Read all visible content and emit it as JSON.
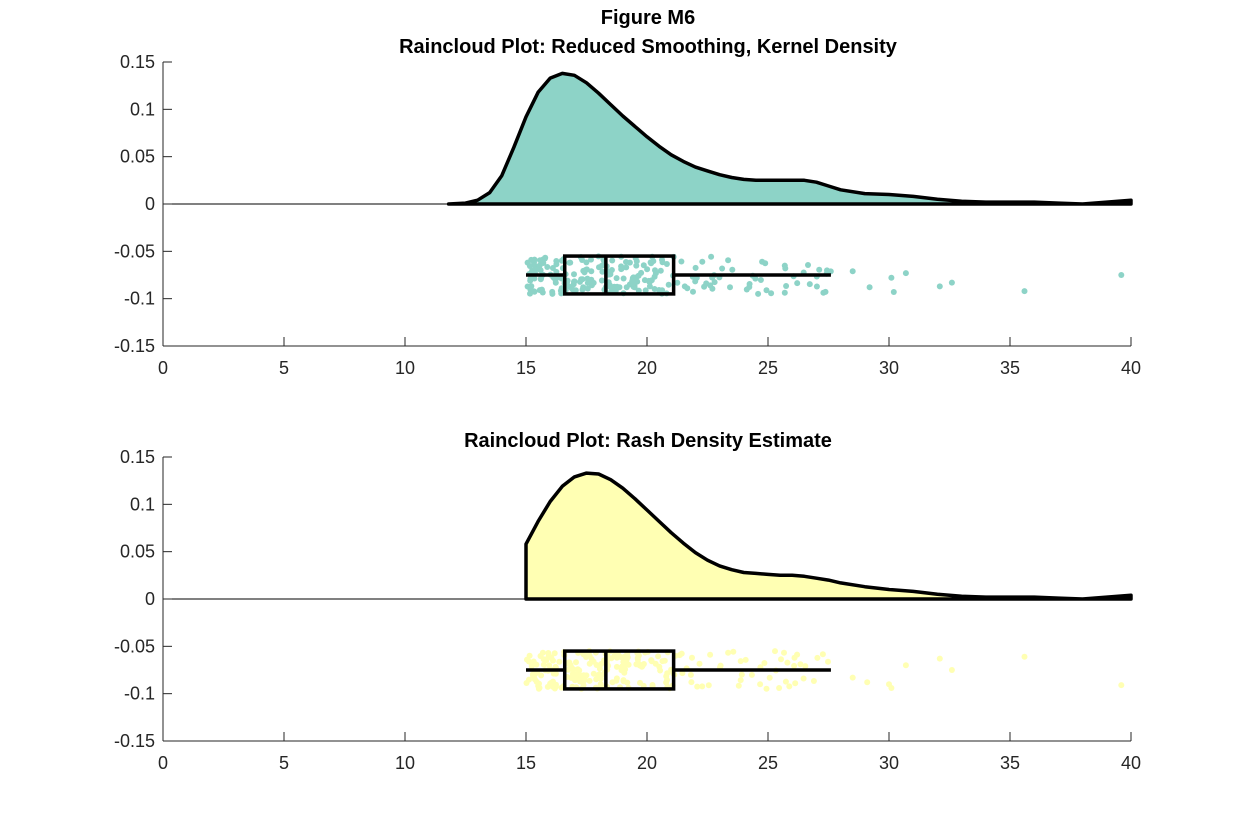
{
  "figure": {
    "title": "Figure M6"
  },
  "chart_data": [
    {
      "type": "raincloud",
      "title": "Raincloud Plot: Reduced Smoothing, Kernel Density",
      "xlabel": "",
      "ylabel": "",
      "xlim": [
        0,
        40
      ],
      "ylim": [
        -0.15,
        0.15
      ],
      "xticks": [
        0,
        5,
        10,
        15,
        20,
        25,
        30,
        35,
        40
      ],
      "yticks": [
        -0.15,
        -0.1,
        -0.05,
        0,
        0.05,
        0.1,
        0.15
      ],
      "ytick_labels": [
        "-0.15",
        "-0.1",
        "-0.05",
        "0",
        "0.05",
        "0.1",
        "0.15"
      ],
      "fill_color": "#8dd3c7",
      "density": {
        "x": [
          11.8,
          12.5,
          13.0,
          13.5,
          14.0,
          14.5,
          15.0,
          15.5,
          16.0,
          16.5,
          17.0,
          17.5,
          18.0,
          18.5,
          19.0,
          19.5,
          20.0,
          20.5,
          21.0,
          21.5,
          22.0,
          22.5,
          23.0,
          23.5,
          24.0,
          24.5,
          25.0,
          25.5,
          26.0,
          26.5,
          27.0,
          27.5,
          28.0,
          29.0,
          30.0,
          31.0,
          32.0,
          33.0,
          34.0,
          35.0,
          36.0,
          37.0,
          38.0,
          39.0,
          40.0
        ],
        "y": [
          0.0,
          0.001,
          0.004,
          0.012,
          0.03,
          0.06,
          0.092,
          0.118,
          0.133,
          0.138,
          0.136,
          0.128,
          0.117,
          0.105,
          0.093,
          0.082,
          0.071,
          0.061,
          0.052,
          0.045,
          0.039,
          0.035,
          0.031,
          0.028,
          0.026,
          0.025,
          0.025,
          0.025,
          0.025,
          0.025,
          0.023,
          0.019,
          0.015,
          0.011,
          0.01,
          0.008,
          0.005,
          0.003,
          0.002,
          0.002,
          0.002,
          0.001,
          0.0,
          0.002,
          0.004
        ]
      },
      "box": {
        "whisker_low": 15.0,
        "q1": 16.6,
        "median": 18.3,
        "q3": 21.1,
        "whisker_high": 27.6,
        "y_center": -0.075,
        "half_height": 0.02
      },
      "outliers": [
        {
          "x": 28.5,
          "y": -0.071
        },
        {
          "x": 29.2,
          "y": -0.088
        },
        {
          "x": 30.1,
          "y": -0.078
        },
        {
          "x": 30.2,
          "y": -0.093
        },
        {
          "x": 30.7,
          "y": -0.073
        },
        {
          "x": 32.1,
          "y": -0.087
        },
        {
          "x": 32.6,
          "y": -0.083
        },
        {
          "x": 35.6,
          "y": -0.092
        },
        {
          "x": 39.6,
          "y": -0.075
        }
      ],
      "points_seed": 7
    },
    {
      "type": "raincloud",
      "title": "Raincloud Plot: Rash Density Estimate",
      "xlabel": "",
      "ylabel": "",
      "xlim": [
        0,
        40
      ],
      "ylim": [
        -0.15,
        0.15
      ],
      "xticks": [
        0,
        5,
        10,
        15,
        20,
        25,
        30,
        35,
        40
      ],
      "yticks": [
        -0.15,
        -0.1,
        -0.05,
        0,
        0.05,
        0.1,
        0.15
      ],
      "ytick_labels": [
        "-0.15",
        "-0.1",
        "-0.05",
        "0",
        "0.05",
        "0.1",
        "0.15"
      ],
      "fill_color": "#ffffb3",
      "density": {
        "x": [
          15.0,
          15.0,
          15.5,
          16.0,
          16.5,
          17.0,
          17.5,
          18.0,
          18.5,
          19.0,
          19.5,
          20.0,
          20.5,
          21.0,
          21.5,
          22.0,
          22.5,
          23.0,
          23.5,
          24.0,
          24.5,
          25.0,
          25.5,
          26.0,
          26.5,
          27.0,
          27.5,
          28.0,
          29.0,
          30.0,
          31.0,
          32.0,
          33.0,
          34.0,
          35.0,
          36.0,
          37.0,
          38.0,
          39.0,
          40.0
        ],
        "y": [
          0.0,
          0.058,
          0.082,
          0.103,
          0.119,
          0.129,
          0.133,
          0.132,
          0.126,
          0.117,
          0.106,
          0.094,
          0.082,
          0.07,
          0.059,
          0.049,
          0.041,
          0.035,
          0.031,
          0.028,
          0.027,
          0.026,
          0.025,
          0.025,
          0.024,
          0.022,
          0.02,
          0.017,
          0.013,
          0.01,
          0.008,
          0.005,
          0.003,
          0.002,
          0.002,
          0.002,
          0.001,
          0.0,
          0.002,
          0.004
        ]
      },
      "box": {
        "whisker_low": 15.0,
        "q1": 16.6,
        "median": 18.3,
        "q3": 21.1,
        "whisker_high": 27.6,
        "y_center": -0.075,
        "half_height": 0.02
      },
      "outliers": [
        {
          "x": 28.5,
          "y": -0.083
        },
        {
          "x": 29.1,
          "y": -0.088
        },
        {
          "x": 30.0,
          "y": -0.09
        },
        {
          "x": 30.1,
          "y": -0.094
        },
        {
          "x": 30.7,
          "y": -0.07
        },
        {
          "x": 32.1,
          "y": -0.063
        },
        {
          "x": 32.6,
          "y": -0.075
        },
        {
          "x": 35.6,
          "y": -0.061
        },
        {
          "x": 39.6,
          "y": -0.091
        }
      ],
      "points_seed": 13
    }
  ]
}
